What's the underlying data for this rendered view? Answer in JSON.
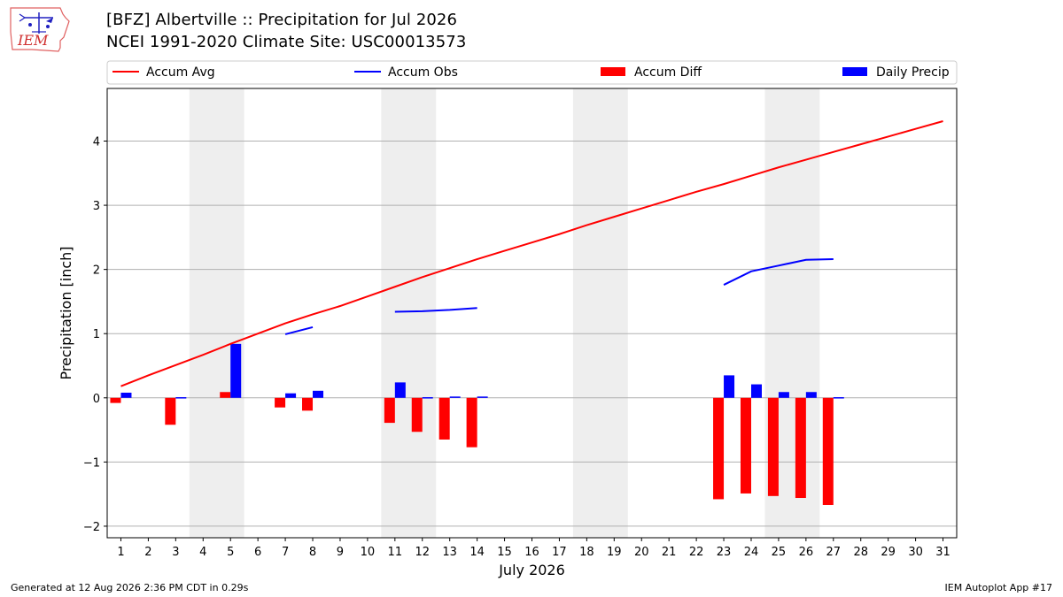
{
  "titles": {
    "line1": "[BFZ] Albertville :: Precipitation for Jul 2026",
    "line2": "NCEI 1991-2020 Climate Site: USC00013573"
  },
  "logo": {
    "text": "IEM",
    "icon": "iem-weather-station-logo"
  },
  "footer": {
    "left": "Generated at 12 Aug 2026 2:36 PM CDT in 0.29s",
    "right": "IEM Autoplot App #17"
  },
  "colors": {
    "accum_avg": "#ff0000",
    "accum_obs": "#0000ff",
    "accum_diff": "#ff0000",
    "daily_precip": "#0000ff",
    "weekend_shade": "#eeeeee",
    "grid": "#b0b0b0"
  },
  "chart_data": {
    "type": "bar",
    "title": "[BFZ] Albertville :: Precipitation for Jul 2026",
    "subtitle": "NCEI 1991-2020 Climate Site: USC00013573",
    "xlabel": "July 2026",
    "ylabel": "Precipitation [inch]",
    "x": [
      1,
      2,
      3,
      4,
      5,
      6,
      7,
      8,
      9,
      10,
      11,
      12,
      13,
      14,
      15,
      16,
      17,
      18,
      19,
      20,
      21,
      22,
      23,
      24,
      25,
      26,
      27,
      28,
      29,
      30,
      31
    ],
    "xlim": [
      0.5,
      31.5
    ],
    "ylim": [
      -2.18,
      4.82
    ],
    "yticks": [
      -2,
      -1,
      0,
      1,
      2,
      3,
      4
    ],
    "ytick_labels": [
      "−2",
      "−1",
      "0",
      "1",
      "2",
      "3",
      "4"
    ],
    "grid": "horizontal",
    "legend": {
      "placement": "top",
      "entries": [
        "Accum Avg",
        "Accum Obs",
        "Accum Diff",
        "Daily Precip"
      ]
    },
    "shaded_days": [
      [
        4,
        5
      ],
      [
        11,
        12
      ],
      [
        18,
        19
      ],
      [
        25,
        26
      ]
    ],
    "series": [
      {
        "name": "Accum Avg",
        "kind": "line",
        "color": "#ff0000",
        "values": [
          0.18,
          0.35,
          0.51,
          0.67,
          0.84,
          1.0,
          1.16,
          1.3,
          1.43,
          1.58,
          1.73,
          1.88,
          2.02,
          2.16,
          2.29,
          2.42,
          2.55,
          2.69,
          2.82,
          2.95,
          3.08,
          3.21,
          3.33,
          3.46,
          3.59,
          3.71,
          3.83,
          3.95,
          4.07,
          4.19,
          4.31
        ]
      },
      {
        "name": "Accum Obs",
        "kind": "line",
        "color": "#0000ff",
        "values": [
          null,
          null,
          null,
          null,
          null,
          null,
          0.99,
          1.1,
          null,
          null,
          1.34,
          1.35,
          1.37,
          1.4,
          null,
          null,
          null,
          null,
          null,
          null,
          null,
          null,
          1.76,
          1.97,
          2.06,
          2.15,
          2.16,
          null,
          null,
          null,
          null
        ]
      },
      {
        "name": "Accum Diff",
        "kind": "bar",
        "color": "#ff0000",
        "values": [
          -0.08,
          null,
          -0.42,
          null,
          0.09,
          null,
          -0.15,
          -0.2,
          null,
          null,
          -0.39,
          -0.53,
          -0.65,
          -0.77,
          null,
          null,
          null,
          null,
          null,
          null,
          null,
          null,
          -1.58,
          -1.49,
          -1.53,
          -1.56,
          -1.67,
          null,
          null,
          null,
          null
        ]
      },
      {
        "name": "Daily Precip",
        "kind": "bar",
        "color": "#0000ff",
        "values": [
          0.08,
          null,
          0.01,
          null,
          0.84,
          null,
          0.07,
          0.11,
          null,
          null,
          0.24,
          0.01,
          0.02,
          0.02,
          null,
          null,
          null,
          null,
          null,
          null,
          null,
          null,
          0.35,
          0.21,
          0.09,
          0.09,
          0.01,
          null,
          null,
          null,
          null
        ]
      }
    ]
  }
}
